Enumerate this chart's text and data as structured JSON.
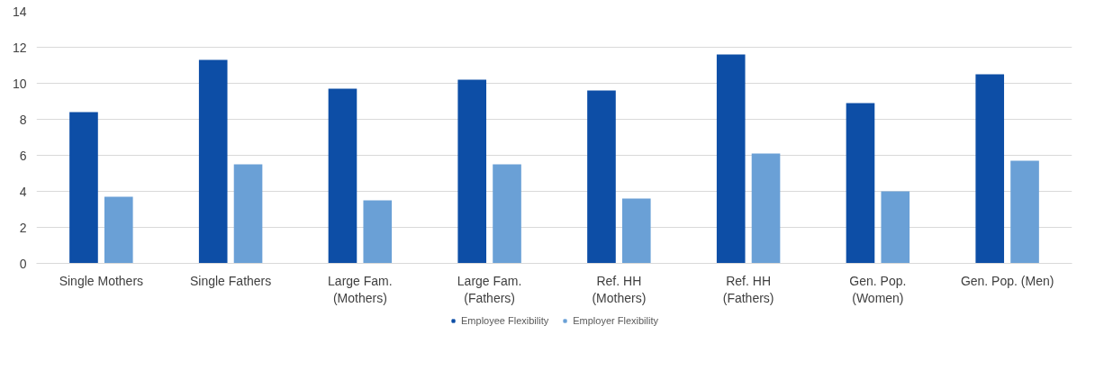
{
  "chart_data": {
    "type": "bar",
    "categories": [
      "Single Mothers",
      "Single Fathers",
      "Large Fam.\n(Mothers)",
      "Large Fam.\n(Fathers)",
      "Ref. HH\n(Mothers)",
      "Ref. HH\n(Fathers)",
      "Gen. Pop.\n(Women)",
      "Gen. Pop. (Men)"
    ],
    "series": [
      {
        "name": "Employee Flexibility",
        "color": "#0d4ea6",
        "values": [
          8.4,
          11.3,
          9.7,
          10.2,
          9.6,
          11.6,
          8.9,
          10.5
        ]
      },
      {
        "name": "Employer Flexibility",
        "color": "#6aa0d6",
        "values": [
          3.7,
          5.5,
          3.5,
          5.5,
          3.6,
          6.1,
          4.0,
          5.7
        ]
      }
    ],
    "ylim": [
      0,
      14
    ],
    "yticks": [
      0,
      2,
      4,
      6,
      8,
      10,
      12,
      14
    ],
    "grid": "y",
    "legend": "bottom"
  }
}
